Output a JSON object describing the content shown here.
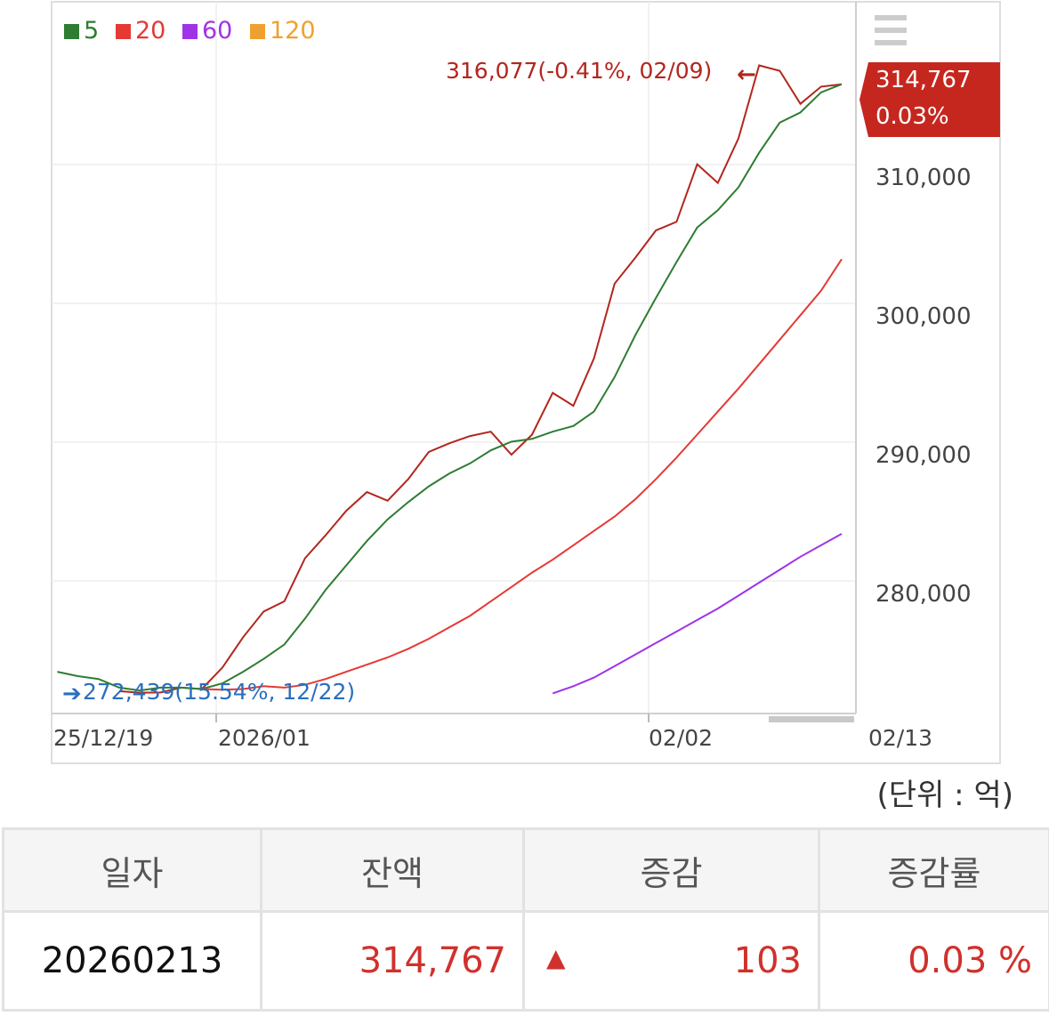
{
  "legend": [
    {
      "label": "5",
      "color": "#2e7d32"
    },
    {
      "label": "20",
      "color": "#e53935"
    },
    {
      "label": "60",
      "color": "#a033e8"
    },
    {
      "label": "120",
      "color": "#f0a030"
    }
  ],
  "menu_icon": "hamburger-menu-icon",
  "chart_data": {
    "type": "line",
    "x_tick_labels": [
      "25/12/19",
      "2026/01",
      "02/02",
      "02/13"
    ],
    "y_tick_labels": [
      "310,000",
      "300,000",
      "290,000",
      "280,000"
    ],
    "y_ticks": [
      310000,
      300000,
      290000,
      280000
    ],
    "ylim": [
      271000,
      320500
    ],
    "grid": true,
    "legend_position": "top-left",
    "series": [
      {
        "name": "balance",
        "color": "#b3261e",
        "values": [
          272550,
          272450,
          272460,
          272800,
          272700,
          274200,
          276300,
          278100,
          278800,
          281800,
          283400,
          285100,
          286400,
          285800,
          287300,
          289200,
          289800,
          290300,
          290600,
          289000,
          290400,
          293300,
          292400,
          295700,
          300900,
          302700,
          304600,
          305200,
          309200,
          307900,
          311000,
          316077,
          315700,
          313400,
          314600,
          314767
        ]
      },
      {
        "name": "5",
        "color": "#2e7d32",
        "values": [
          273900,
          273600,
          273400,
          272800,
          272600,
          272800,
          272800,
          272700,
          273100,
          273900,
          274800,
          275800,
          277600,
          279600,
          281300,
          283000,
          284500,
          285700,
          286800,
          287700,
          288400,
          289300,
          289900,
          290100,
          290600,
          291000,
          292000,
          294400,
          297300,
          299900,
          302400,
          304800,
          306000,
          307600,
          310000,
          312100,
          312800,
          314200,
          314767
        ]
      },
      {
        "name": "20",
        "color": "#e53935",
        "values": [
          272700,
          272650,
          272700,
          272900,
          272800,
          273000,
          273400,
          273900,
          274400,
          274900,
          275500,
          276200,
          277000,
          277800,
          278800,
          279800,
          280800,
          281700,
          282700,
          283700,
          284700,
          285900,
          287300,
          288800,
          290400,
          292000,
          293600,
          295300,
          297000,
          298700,
          300400,
          302600
        ]
      },
      {
        "name": "60",
        "color": "#a033e8",
        "values": [
          272400,
          272900,
          273500,
          274300,
          275100,
          275900,
          276700,
          277500,
          278300,
          279200,
          280100,
          281000,
          281900,
          282700,
          283500
        ]
      }
    ],
    "annotations": {
      "max": {
        "text": "316,077(-0.41%, 02/09)",
        "arrow": "←",
        "color": "#b3261e"
      },
      "min": {
        "text": "272,439(15.54%, 12/22)",
        "arrow": "➔",
        "color": "#2a6fbf"
      }
    },
    "current": {
      "value": "314,767",
      "change": "0.03%",
      "color": "#c5271f"
    }
  },
  "unit_label": "(단위 : 억)",
  "table": {
    "headers": [
      "일자",
      "잔액",
      "증감",
      "증감률"
    ],
    "row": {
      "date": "20260213",
      "balance": "314,767",
      "up_icon": "▲",
      "change": "103",
      "rate": "0.03 %"
    }
  }
}
